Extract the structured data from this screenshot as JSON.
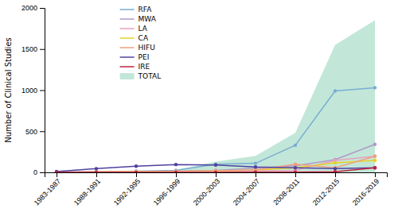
{
  "chart_data": {
    "type": "line",
    "ylabel": "Number of Clinical Studies",
    "categories": [
      "1983-1987",
      "1988-1991",
      "1992-1995",
      "1996-1999",
      "2000-2003",
      "2004-2007",
      "2008-2011",
      "2012-2015",
      "2016-2019"
    ],
    "series": [
      {
        "name": "RFA",
        "color": "#7aadd4",
        "values": [
          2,
          8,
          15,
          25,
          100,
          110,
          330,
          990,
          1030
        ]
      },
      {
        "name": "MWA",
        "color": "#b09ac8",
        "values": [
          2,
          5,
          10,
          15,
          25,
          50,
          80,
          155,
          340
        ]
      },
      {
        "name": "LA",
        "color": "#e8a0c0",
        "values": [
          2,
          5,
          8,
          12,
          15,
          20,
          25,
          145,
          195
        ]
      },
      {
        "name": "CA",
        "color": "#e8d020",
        "values": [
          2,
          5,
          8,
          12,
          18,
          28,
          55,
          115,
          145
        ]
      },
      {
        "name": "HIFU",
        "color": "#f0a080",
        "values": [
          2,
          5,
          8,
          12,
          18,
          28,
          100,
          55,
          195
        ]
      },
      {
        "name": "PEI",
        "color": "#5040a0",
        "values": [
          10,
          45,
          75,
          95,
          90,
          65,
          55,
          45,
          55
        ]
      },
      {
        "name": "IRE",
        "color": "#c02040",
        "values": [
          0,
          0,
          0,
          0,
          0,
          2,
          2,
          8,
          55
        ]
      },
      {
        "name": "TOTAL",
        "type": "area",
        "color": "#90d4b8",
        "values": [
          0,
          0,
          0,
          30,
          130,
          200,
          480,
          1550,
          1850
        ],
        "lower": [
          0,
          0,
          0,
          0,
          0,
          0,
          0,
          0,
          0
        ]
      }
    ],
    "marker": "circle",
    "ylim": [
      0,
      2000
    ],
    "yticks": [
      0,
      500,
      1000,
      1500,
      2000
    ],
    "legend": "upper left"
  }
}
